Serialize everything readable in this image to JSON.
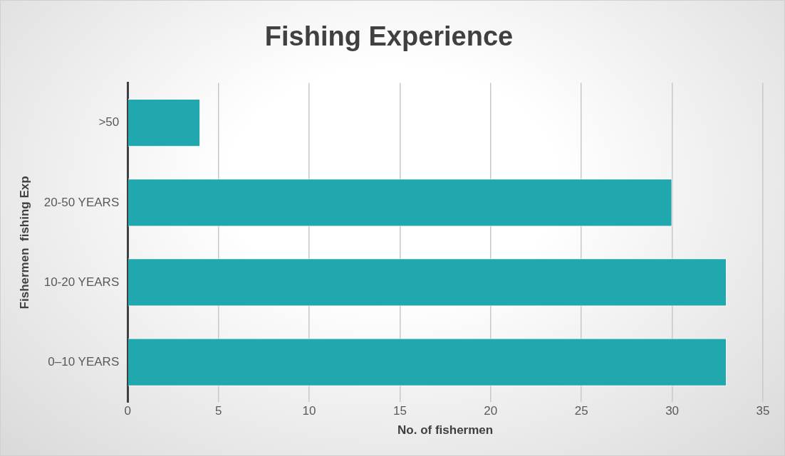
{
  "chart_data": {
    "type": "bar",
    "title": "Fishing Experience",
    "xlabel": "No. of fishermen",
    "ylabel": "Fishermen  fishing Exp",
    "orientation": "horizontal",
    "categories": [
      ">50",
      "20-50 YEARS",
      "10-20 YEARS",
      "0–10 YEARS"
    ],
    "values": [
      4,
      30,
      33,
      33
    ],
    "color": "#21a7ae",
    "xlim": [
      0,
      35
    ],
    "xticks": [
      0,
      5,
      10,
      15,
      20,
      25,
      30,
      35
    ],
    "grid": "x",
    "legend": false
  }
}
